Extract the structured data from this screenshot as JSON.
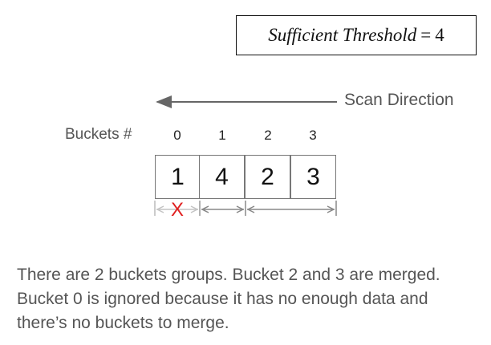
{
  "threshold": {
    "label": "Sufficient Threshold",
    "operator": "=",
    "value": "4"
  },
  "scan_direction": {
    "label": "Scan Direction",
    "direction": "right-to-left"
  },
  "buckets": {
    "label": "Buckets #",
    "indices": [
      "0",
      "1",
      "2",
      "3"
    ],
    "values": [
      "1",
      "4",
      "2",
      "3"
    ]
  },
  "groups": {
    "ignored_mark": "X",
    "ignored_bucket": "0",
    "group_count": 2
  },
  "explanation": "There are 2 buckets groups. Bucket 2 and 3 are merged. Bucket 0 is ignored because it has no enough data and there’s no buckets to merge.",
  "colors": {
    "text_gray": "#555555",
    "line_gray": "#777777",
    "ignored_gray": "#bbbbbb",
    "ignored_red": "#e02020"
  }
}
